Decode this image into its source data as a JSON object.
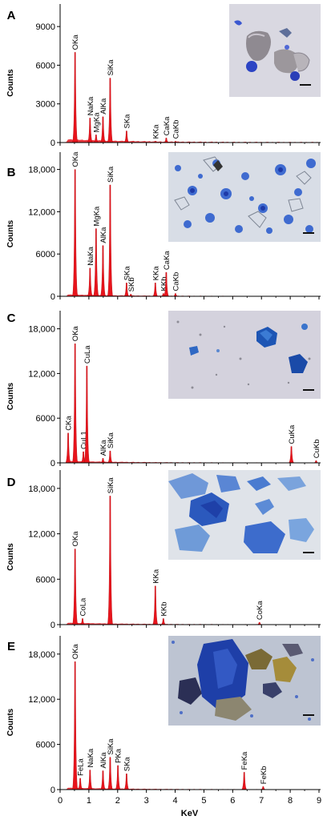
{
  "figure": {
    "xlabel": "KeV",
    "ylabel": "Counts",
    "xticks": [
      "0",
      "1",
      "2",
      "3",
      "4",
      "5",
      "6",
      "7",
      "8",
      "9"
    ],
    "xlim": [
      0,
      9
    ]
  },
  "chart_data": [
    {
      "type": "area",
      "panel": "A",
      "ylabel": "Counts",
      "ylim": [
        0,
        10500
      ],
      "yticks": [
        0,
        3000,
        6000,
        9000
      ],
      "ytick_labels": [
        "0",
        "3000",
        "6000",
        "9000"
      ],
      "has_micrograph": true,
      "peaks": [
        {
          "label": "OKa",
          "x": 0.52,
          "y": 7000
        },
        {
          "label": "NaKa",
          "x": 1.04,
          "y": 1900
        },
        {
          "label": "MgKa",
          "x": 1.25,
          "y": 600
        },
        {
          "label": "AlKa",
          "x": 1.49,
          "y": 2000
        },
        {
          "label": "SiKa",
          "x": 1.74,
          "y": 5000
        },
        {
          "label": "SKa",
          "x": 2.31,
          "y": 900
        },
        {
          "label": "KKa",
          "x": 3.31,
          "y": 100
        },
        {
          "label": "CaKa",
          "x": 3.69,
          "y": 350
        },
        {
          "label": "CaKb",
          "x": 4.01,
          "y": 100
        }
      ]
    },
    {
      "type": "area",
      "panel": "B",
      "ylabel": "Counts",
      "ylim": [
        0,
        20000
      ],
      "yticks": [
        0,
        6000,
        12000,
        18000
      ],
      "ytick_labels": [
        "0",
        "6000",
        "12,000",
        "18,000"
      ],
      "has_micrograph": true,
      "peaks": [
        {
          "label": "OKa",
          "x": 0.52,
          "y": 18000
        },
        {
          "label": "NaKa",
          "x": 1.04,
          "y": 4000
        },
        {
          "label": "MgKa",
          "x": 1.25,
          "y": 9600
        },
        {
          "label": "AlKa",
          "x": 1.49,
          "y": 7200
        },
        {
          "label": "SiKa",
          "x": 1.74,
          "y": 15800
        },
        {
          "label": "SKa",
          "x": 2.31,
          "y": 1900
        },
        {
          "label": "SKb",
          "x": 2.46,
          "y": 300
        },
        {
          "label": "KKa",
          "x": 3.31,
          "y": 1900
        },
        {
          "label": "KKb",
          "x": 3.59,
          "y": 400
        },
        {
          "label": "CaKa",
          "x": 3.69,
          "y": 3400
        },
        {
          "label": "CaKb",
          "x": 4.01,
          "y": 400
        }
      ]
    },
    {
      "type": "area",
      "panel": "C",
      "ylabel": "Counts",
      "ylim": [
        0,
        20000
      ],
      "yticks": [
        0,
        6000,
        12000,
        18000
      ],
      "ytick_labels": [
        "0",
        "6000",
        "12,000",
        "18,000"
      ],
      "has_micrograph": true,
      "peaks": [
        {
          "label": "CKa",
          "x": 0.28,
          "y": 4000
        },
        {
          "label": "OKa",
          "x": 0.52,
          "y": 16000
        },
        {
          "label": "CuL1",
          "x": 0.81,
          "y": 1500
        },
        {
          "label": "CuLa",
          "x": 0.93,
          "y": 13000
        },
        {
          "label": "AlKa",
          "x": 1.49,
          "y": 600
        },
        {
          "label": "SiKa",
          "x": 1.74,
          "y": 1600
        },
        {
          "label": "CuKa",
          "x": 8.04,
          "y": 2200
        },
        {
          "label": "CuKb",
          "x": 8.9,
          "y": 300
        }
      ]
    },
    {
      "type": "area",
      "panel": "D",
      "ylabel": "Counts",
      "ylim": [
        0,
        20000
      ],
      "yticks": [
        0,
        6000,
        12000,
        18000
      ],
      "ytick_labels": [
        "0",
        "6000",
        "12,000",
        "18,000"
      ],
      "has_micrograph": true,
      "peaks": [
        {
          "label": "OKa",
          "x": 0.52,
          "y": 10000
        },
        {
          "label": "CoLa",
          "x": 0.78,
          "y": 800
        },
        {
          "label": "SiKa",
          "x": 1.74,
          "y": 17000
        },
        {
          "label": "KKa",
          "x": 3.31,
          "y": 5100
        },
        {
          "label": "KKb",
          "x": 3.59,
          "y": 800
        },
        {
          "label": "CoKa",
          "x": 6.93,
          "y": 300
        }
      ]
    },
    {
      "type": "area",
      "panel": "E",
      "ylabel": "Counts",
      "ylim": [
        0,
        20000
      ],
      "yticks": [
        0,
        6000,
        12000,
        18000
      ],
      "ytick_labels": [
        "0",
        "6000",
        "12,000",
        "18,000"
      ],
      "has_micrograph": true,
      "peaks": [
        {
          "label": "OKa",
          "x": 0.52,
          "y": 17000
        },
        {
          "label": "FeLa",
          "x": 0.7,
          "y": 1500
        },
        {
          "label": "NaKa",
          "x": 1.04,
          "y": 2600
        },
        {
          "label": "AlKa",
          "x": 1.49,
          "y": 2500
        },
        {
          "label": "SiKa",
          "x": 1.74,
          "y": 4300
        },
        {
          "label": "PKa",
          "x": 2.01,
          "y": 3200
        },
        {
          "label": "SKa",
          "x": 2.31,
          "y": 2100
        },
        {
          "label": "FeKa",
          "x": 6.4,
          "y": 2300
        },
        {
          "label": "FeKb",
          "x": 7.06,
          "y": 400
        }
      ]
    }
  ],
  "colors": {
    "spectrum": "#e8141c",
    "spectrum_dark": "#b3060d",
    "axis": "#000000",
    "text": "#000000"
  }
}
